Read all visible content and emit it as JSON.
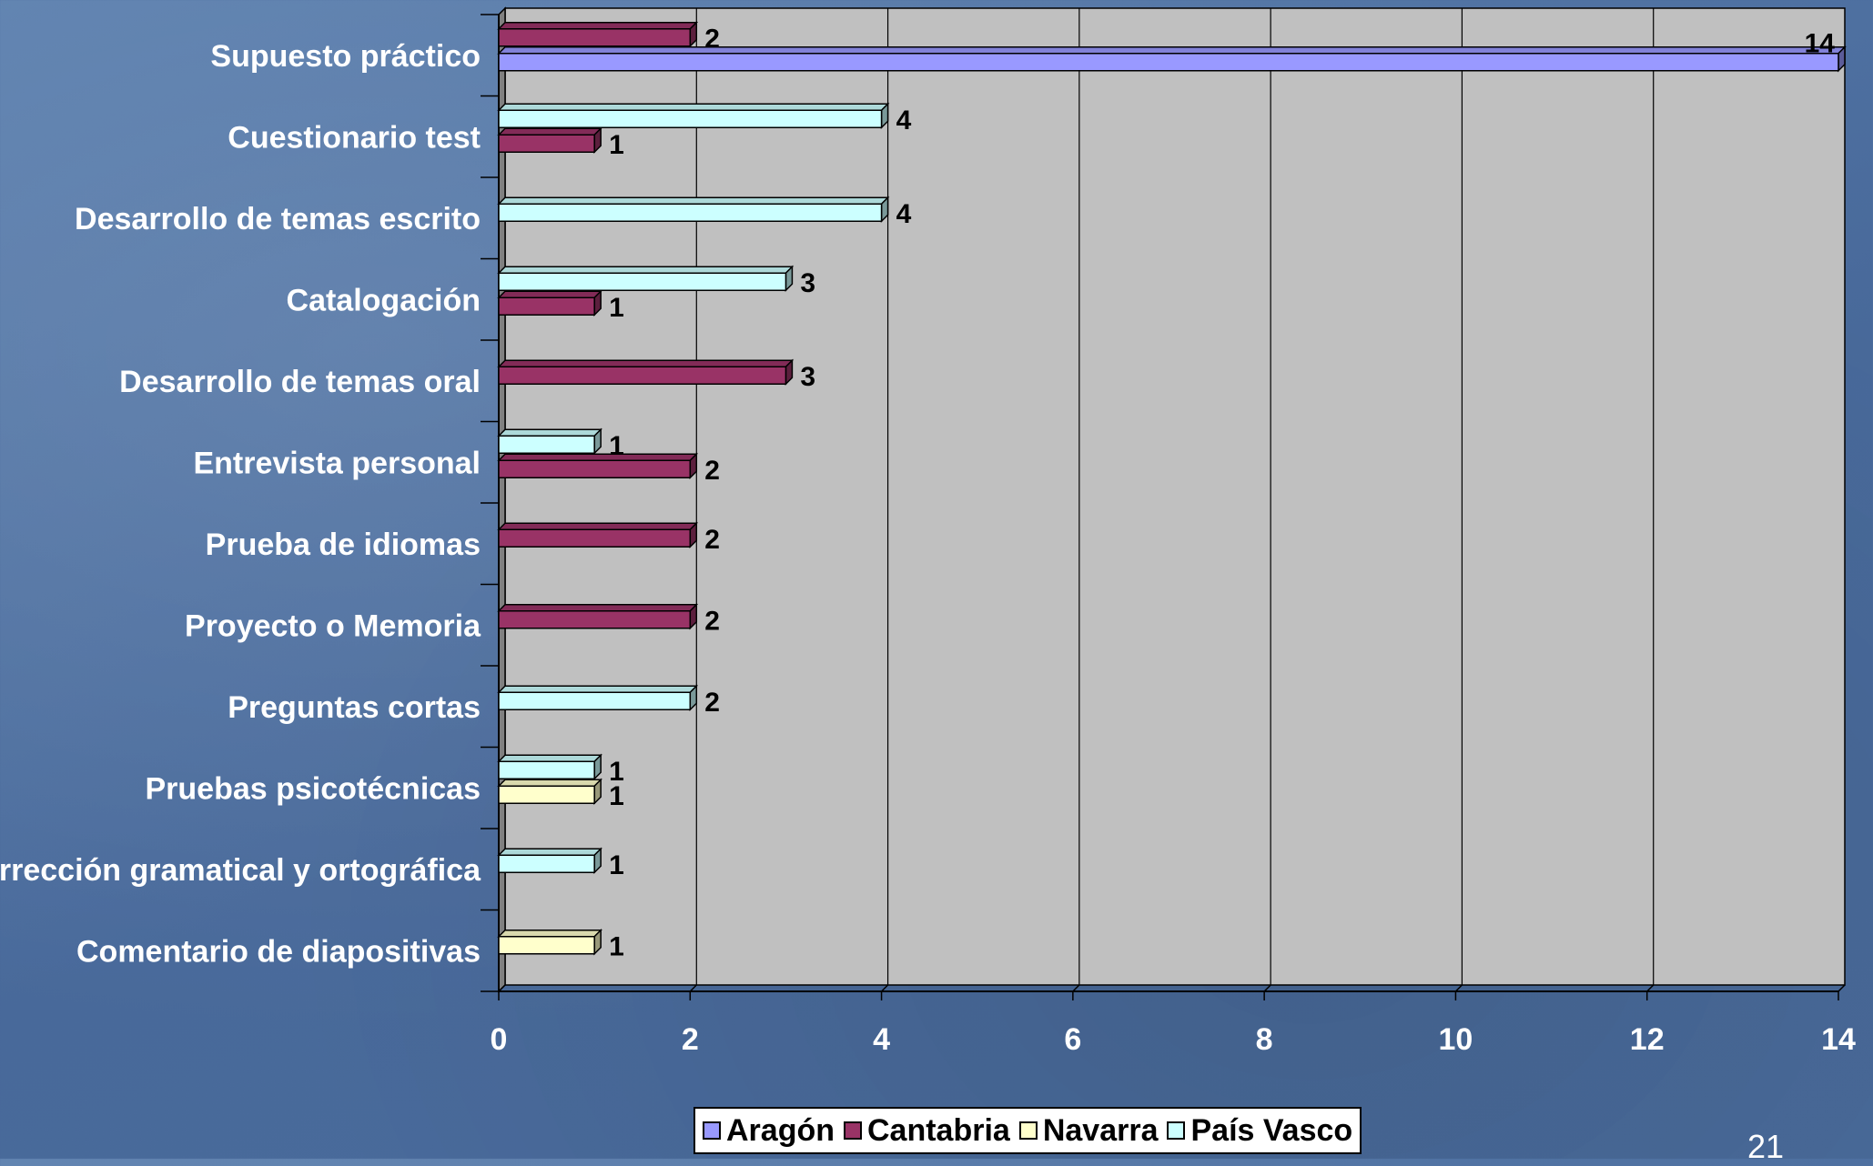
{
  "chart_data": {
    "type": "bar",
    "orientation": "horizontal",
    "categories": [
      "Supuesto práctico",
      "Cuestionario test",
      "Desarrollo de temas escrito",
      "Catalogación",
      "Desarrollo de temas oral",
      "Entrevista personal",
      "Prueba de idiomas",
      "Proyecto o Memoria",
      "Preguntas cortas",
      "Pruebas psicotécnicas",
      "Corrección gramatical y ortográfica",
      "Comentario de diapositivas"
    ],
    "series": [
      {
        "name": "Aragón",
        "color": "#9999ff",
        "values": [
          14,
          null,
          null,
          null,
          null,
          null,
          null,
          null,
          null,
          null,
          null,
          null
        ]
      },
      {
        "name": "Cantabria",
        "color": "#993366",
        "values": [
          2,
          1,
          null,
          1,
          3,
          2,
          2,
          2,
          null,
          null,
          null,
          null
        ]
      },
      {
        "name": "Navarra",
        "color": "#ffffcc",
        "values": [
          null,
          null,
          null,
          null,
          null,
          null,
          null,
          null,
          null,
          1,
          null,
          1
        ]
      },
      {
        "name": "País Vasco",
        "color": "#ccffff",
        "values": [
          null,
          4,
          4,
          3,
          null,
          1,
          null,
          null,
          2,
          1,
          1,
          null
        ]
      }
    ],
    "xlim": [
      0,
      14
    ],
    "xticks": [
      "0",
      "2",
      "4",
      "6",
      "8",
      "10",
      "12",
      "14"
    ],
    "grid": true,
    "legend_position": "bottom",
    "title": "",
    "xlabel": "",
    "ylabel": ""
  },
  "page_number": "21"
}
